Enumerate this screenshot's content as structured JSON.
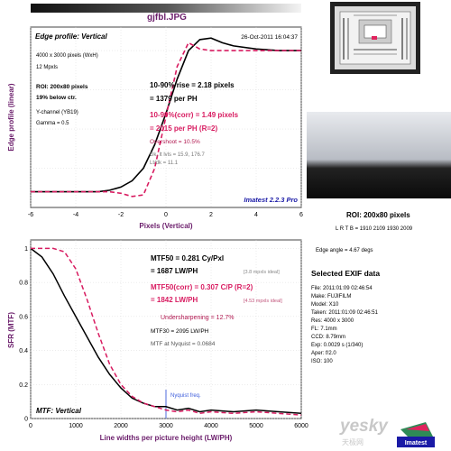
{
  "header": {
    "title": "gjfbl.JPG"
  },
  "colors": {
    "black_curve": "#000000",
    "magenta_curve": "#d81b60",
    "axis_label": "#6b1d6b",
    "nyquist": "#3b5bdb",
    "text_blue": "#1a1aa6",
    "plot_border": "#444444"
  },
  "edge_plot": {
    "inner_title": "Edge profile: Vertical",
    "timestamp": "26-Oct-2011 16:04:37",
    "image_size": "4000 x 3000 pixels (WxH)",
    "mpixels": "12 Mpxls",
    "roi": "ROI: 200x80 pixels",
    "below_ctr": "19% below ctr.",
    "channel": "Y-channel (YB19)",
    "gamma": "Gamma = 0.5",
    "rise": "10-90% rise = 2.18 pixels",
    "rise_ph": "= 1379 per PH",
    "rise_corr": "10-90%(corr) = 1.49 pixels",
    "rise_corr_ph": "= 2015 per PH (R=2)",
    "overshoot": "Overshoot = 10.5%",
    "dk_lt": "Dk, lt lvls = 15.9, 176.7",
    "lt_dk": "Lt/dk = 11.1",
    "version": "Imatest 2.2.3 Pro",
    "ylabel": "Edge profile (linear)",
    "xlabel": "Pixels (Vertical)"
  },
  "mtf_plot": {
    "mtf50": "MTF50 = 0.281 Cy/Pxl",
    "mtf50_lwph": "= 1687 LW/PH",
    "mtf50_ideal": "[3.8 mpxls ideal]",
    "mtf50_corr": "MTF50(corr) = 0.307 C/P (R=2)",
    "mtf50_corr_lwph": "= 1842 LW/PH",
    "mtf50_corr_ideal": "[4.53 mpxls ideal]",
    "undersharpening": "Undersharpening = 12.7%",
    "mtf30": "MTF30 = 2095 LW/PH",
    "nyquist_text": "MTF at Nyquist = 0.0684",
    "nyquist_label": "Nyquist freq.",
    "inner_title": "MTF: Vertical",
    "ylabel": "SFR (MTF)",
    "xlabel": "Line widths per picture height (LW/PH)"
  },
  "roi_info": {
    "title": "ROI: 200x80 pixels",
    "lrtb": "L R T B = 1910 2109 1930 2009",
    "edge_angle": "Edge angle = 4.67 degs"
  },
  "exif": {
    "title": "Selected EXIF data",
    "rows": [
      "File:  2011:01:09 02:46:54",
      "Make:  FUJIFILM",
      "Model:  X10",
      "Taken:  2011:01:09 02:46:51",
      "Res:  4000 x 3000",
      "FL:  7.1mm",
      "CCD:  8.79mm",
      "Exp:  0.0029 s (1/340)",
      "Aper:  f/2.0",
      "ISO:  100"
    ]
  },
  "watermark": {
    "text": "yesky",
    "sub": "天极网",
    "logo": "Imatest"
  },
  "chart_data": [
    {
      "type": "line",
      "title": "Edge profile: Vertical",
      "xlabel": "Pixels (Vertical)",
      "ylabel": "Edge profile (linear)",
      "xlim": [
        -6,
        6
      ],
      "xticks": [
        -6,
        -4,
        -2,
        0,
        2,
        4,
        6
      ],
      "ylim": [
        0,
        1.15
      ],
      "grid": true,
      "series": [
        {
          "name": "",
          "color": "black",
          "x": [
            -6,
            -5,
            -4,
            -3,
            -2.5,
            -2,
            -1.5,
            -1,
            -0.5,
            0,
            0.5,
            1,
            1.5,
            2,
            2.5,
            3,
            4,
            5,
            6
          ],
          "y": [
            0.1,
            0.1,
            0.1,
            0.1,
            0.11,
            0.13,
            0.17,
            0.25,
            0.4,
            0.6,
            0.82,
            1.0,
            1.07,
            1.08,
            1.05,
            1.03,
            1.01,
            1.0,
            1.0
          ]
        },
        {
          "name": "",
          "color": "magenta",
          "x": [
            -6,
            -5,
            -4,
            -3,
            -2.5,
            -2,
            -1.5,
            -1,
            -0.5,
            0,
            0.5,
            1,
            1.5,
            2,
            2.5,
            3,
            4,
            5,
            6
          ],
          "y": [
            0.1,
            0.1,
            0.1,
            0.1,
            0.1,
            0.09,
            0.07,
            0.08,
            0.25,
            0.58,
            0.9,
            1.05,
            1.01,
            1.0,
            1.0,
            1.0,
            1.0,
            1.0,
            1.0
          ]
        }
      ]
    },
    {
      "type": "line",
      "title": "MTF: Vertical",
      "xlabel": "Line widths per picture height (LW/PH)",
      "ylabel": "SFR (MTF)",
      "xlim": [
        0,
        6000
      ],
      "xticks": [
        0,
        1000,
        2000,
        3000,
        4000,
        5000,
        6000
      ],
      "ylim": [
        0,
        1.05
      ],
      "yticks": [
        0,
        0.2,
        0.4,
        0.6,
        0.8,
        1
      ],
      "grid": true,
      "annotations": [
        {
          "x": 3000,
          "label": "Nyquist freq."
        }
      ],
      "series": [
        {
          "name": "",
          "color": "black",
          "x": [
            0,
            250,
            500,
            750,
            1000,
            1250,
            1500,
            1750,
            2000,
            2250,
            2500,
            2750,
            3000,
            3250,
            3500,
            3750,
            4000,
            4500,
            5000,
            5500,
            6000
          ],
          "y": [
            1.0,
            0.95,
            0.85,
            0.72,
            0.6,
            0.48,
            0.36,
            0.26,
            0.18,
            0.12,
            0.09,
            0.07,
            0.07,
            0.05,
            0.06,
            0.04,
            0.05,
            0.04,
            0.05,
            0.04,
            0.03
          ]
        },
        {
          "name": "",
          "color": "magenta",
          "x": [
            0,
            250,
            500,
            750,
            1000,
            1250,
            1500,
            1750,
            2000,
            2250,
            2500,
            2750,
            3000,
            3250,
            3500,
            3750,
            4000,
            4500,
            5000,
            5500,
            6000
          ],
          "y": [
            1.0,
            1.0,
            1.0,
            0.98,
            0.88,
            0.7,
            0.5,
            0.32,
            0.2,
            0.13,
            0.09,
            0.07,
            0.05,
            0.04,
            0.05,
            0.03,
            0.04,
            0.03,
            0.04,
            0.03,
            0.02
          ]
        }
      ]
    }
  ]
}
